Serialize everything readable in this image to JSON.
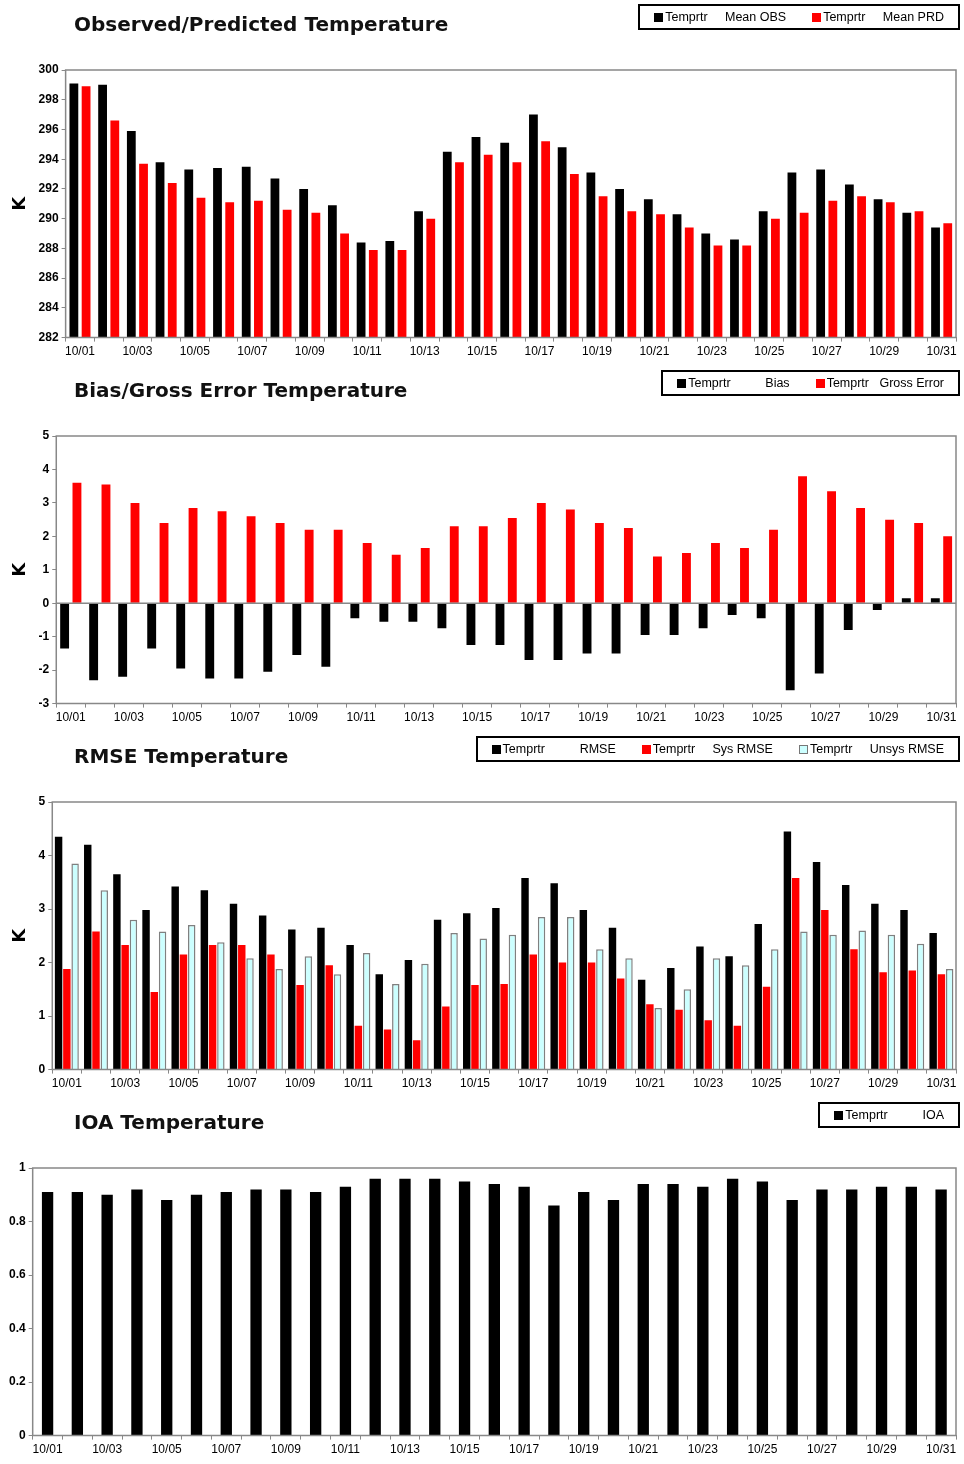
{
  "chart_data": [
    {
      "type": "bar",
      "title": "Observed/Predicted Temperature",
      "ylabel": "K",
      "categories": [
        "10/01",
        null,
        "10/03",
        null,
        "10/05",
        null,
        "10/07",
        null,
        "10/09",
        null,
        "10/11",
        null,
        "10/13",
        null,
        "10/15",
        null,
        "10/17",
        null,
        "10/19",
        null,
        "10/21",
        null,
        "10/23",
        null,
        "10/25",
        null,
        "10/27",
        null,
        "10/29",
        null,
        "10/31"
      ],
      "series": [
        {
          "name": "Temprtr     Mean OBS",
          "color": "#000000",
          "values": [
            299.1,
            299.0,
            295.9,
            293.8,
            293.3,
            293.4,
            293.5,
            292.7,
            292.0,
            290.9,
            288.4,
            288.5,
            290.5,
            294.5,
            295.5,
            295.1,
            297.0,
            294.8,
            293.1,
            292.0,
            291.3,
            290.3,
            289.0,
            288.6,
            290.5,
            293.1,
            293.3,
            292.3,
            291.3,
            290.4,
            289.4
          ]
        },
        {
          "name": "Temprtr     Mean PRD",
          "color": "#ff0000",
          "values": [
            298.9,
            296.6,
            293.7,
            292.4,
            291.4,
            291.1,
            291.2,
            290.6,
            290.4,
            289.0,
            287.9,
            287.9,
            290.0,
            293.8,
            294.3,
            293.8,
            295.2,
            293.0,
            291.5,
            290.5,
            290.3,
            289.4,
            288.2,
            288.2,
            290.0,
            290.4,
            291.2,
            291.5,
            291.1,
            290.5,
            289.7
          ]
        }
      ],
      "ylim": [
        282,
        300
      ],
      "yticks": [
        282,
        284,
        286,
        288,
        290,
        292,
        294,
        296,
        298,
        300
      ],
      "grid": false,
      "legend": "top right"
    },
    {
      "type": "bar",
      "title": "Bias/Gross Error Temperature",
      "ylabel": "K",
      "categories": [
        "10/01",
        null,
        "10/03",
        null,
        "10/05",
        null,
        "10/07",
        null,
        "10/09",
        null,
        "10/11",
        null,
        "10/13",
        null,
        "10/15",
        null,
        "10/17",
        null,
        "10/19",
        null,
        "10/21",
        null,
        "10/23",
        null,
        "10/25",
        null,
        "10/27",
        null,
        "10/29",
        null,
        "10/31"
      ],
      "series": [
        {
          "name": "Temprtr          Bias",
          "color": "#000000",
          "values": [
            -1.35,
            -2.3,
            -2.2,
            -1.35,
            -1.95,
            -2.25,
            -2.25,
            -2.05,
            -1.55,
            -1.9,
            -0.45,
            -0.55,
            -0.55,
            -0.75,
            -1.25,
            -1.25,
            -1.7,
            -1.7,
            -1.5,
            -1.5,
            -0.95,
            -0.95,
            -0.75,
            -0.35,
            -0.45,
            -2.6,
            -2.1,
            -0.8,
            -0.2,
            0.15,
            0.15
          ]
        },
        {
          "name": "Temprtr   Gross Error",
          "color": "#ff0000",
          "values": [
            3.6,
            3.55,
            3.0,
            2.4,
            2.85,
            2.75,
            2.6,
            2.4,
            2.2,
            2.2,
            1.8,
            1.45,
            1.65,
            2.3,
            2.3,
            2.55,
            3.0,
            2.8,
            2.4,
            2.25,
            1.4,
            1.5,
            1.8,
            1.65,
            2.2,
            3.8,
            3.35,
            2.85,
            2.5,
            2.4,
            2.0
          ]
        }
      ],
      "ylim": [
        -3,
        5
      ],
      "yticks": [
        -3,
        -2,
        -1,
        0,
        1,
        2,
        3,
        4,
        5
      ],
      "grid": false,
      "legend": "top right",
      "ref_lines": [
        {
          "axis": "y",
          "value": 0,
          "color": "#888888"
        }
      ]
    },
    {
      "type": "bar",
      "title": "RMSE Temperature",
      "ylabel": "K",
      "categories": [
        "10/01",
        null,
        "10/03",
        null,
        "10/05",
        null,
        "10/07",
        null,
        "10/09",
        null,
        "10/11",
        null,
        "10/13",
        null,
        "10/15",
        null,
        "10/17",
        null,
        "10/19",
        null,
        "10/21",
        null,
        "10/23",
        null,
        "10/25",
        null,
        "10/27",
        null,
        "10/29",
        null,
        "10/31"
      ],
      "series": [
        {
          "name": "Temprtr          RMSE",
          "color": "#000000",
          "values": [
            4.35,
            4.2,
            3.65,
            2.98,
            3.42,
            3.35,
            3.1,
            2.88,
            2.62,
            2.65,
            2.33,
            1.78,
            2.05,
            2.8,
            2.92,
            3.02,
            3.58,
            3.48,
            2.98,
            2.65,
            1.68,
            1.9,
            2.3,
            2.12,
            2.72,
            4.45,
            3.88,
            3.45,
            3.1,
            2.98,
            2.55
          ]
        },
        {
          "name": "Temprtr     Sys RMSE",
          "color": "#ff0000",
          "values": [
            1.88,
            2.58,
            2.33,
            1.45,
            2.15,
            2.33,
            2.33,
            2.15,
            1.58,
            1.95,
            0.82,
            0.75,
            0.55,
            1.18,
            1.58,
            1.6,
            2.15,
            2.0,
            2.0,
            1.7,
            1.22,
            1.12,
            0.92,
            0.82,
            1.55,
            3.58,
            2.98,
            2.25,
            1.82,
            1.85,
            1.78
          ]
        },
        {
          "name": "Temprtr     Unsys RMSE",
          "color": "#ccffff",
          "values": [
            3.85,
            3.35,
            2.8,
            2.58,
            2.7,
            2.38,
            2.08,
            1.88,
            2.12,
            1.78,
            2.18,
            1.6,
            1.98,
            2.55,
            2.45,
            2.52,
            2.85,
            2.85,
            2.25,
            2.08,
            1.15,
            1.5,
            2.08,
            1.95,
            2.25,
            2.58,
            2.52,
            2.6,
            2.52,
            2.35,
            1.88
          ]
        }
      ],
      "ylim": [
        0,
        5
      ],
      "yticks": [
        0,
        1,
        2,
        3,
        4,
        5
      ],
      "grid": false,
      "legend": "top right"
    },
    {
      "type": "bar",
      "title": "IOA Temperature",
      "categories": [
        "10/01",
        null,
        "10/03",
        null,
        "10/05",
        null,
        "10/07",
        null,
        "10/09",
        null,
        "10/11",
        null,
        "10/13",
        null,
        "10/15",
        null,
        "10/17",
        null,
        "10/19",
        null,
        "10/21",
        null,
        "10/23",
        null,
        "10/25",
        null,
        "10/27",
        null,
        "10/29",
        null,
        "10/31"
      ],
      "series": [
        {
          "name": "Temprtr          IOA",
          "color": "#000000",
          "values": [
            0.91,
            0.91,
            0.9,
            0.92,
            0.88,
            0.9,
            0.91,
            0.92,
            0.92,
            0.91,
            0.93,
            0.96,
            0.96,
            0.96,
            0.95,
            0.94,
            0.93,
            0.86,
            0.91,
            0.88,
            0.94,
            0.94,
            0.93,
            0.96,
            0.95,
            0.88,
            0.92,
            0.92,
            0.93,
            0.93,
            0.92
          ]
        }
      ],
      "ylim": [
        0,
        1
      ],
      "yticks": [
        0,
        0.2,
        0.4,
        0.6,
        0.8,
        1
      ],
      "grid": false,
      "legend": "top right"
    }
  ]
}
